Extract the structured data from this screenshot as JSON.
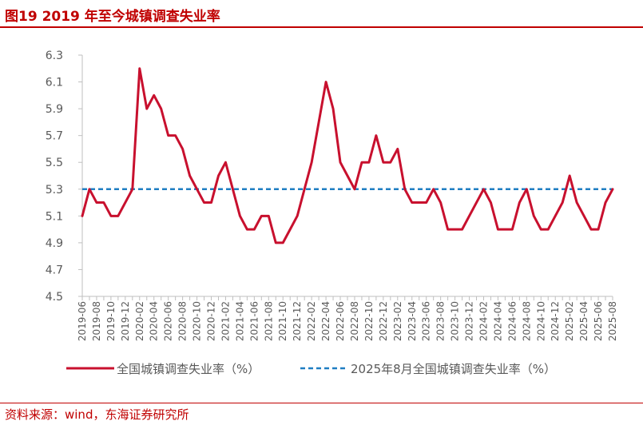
{
  "header": {
    "title": "图19  2019 年至今城镇调查失业率"
  },
  "footer": {
    "source": "资料来源：wind，东海证券研究所"
  },
  "colors": {
    "series_main": "#C8102E",
    "series_ref": "#1F7EC2",
    "axis": "#BFBFBF",
    "text": "#595959",
    "brand": "#C00000"
  },
  "chart_data": {
    "type": "line",
    "ylim": [
      4.5,
      6.3
    ],
    "yticks": [
      "4.5",
      "4.7",
      "4.9",
      "5.1",
      "5.3",
      "5.5",
      "5.7",
      "5.9",
      "6.1",
      "6.3"
    ],
    "x_tick_labels": [
      "2019-06",
      "2019-08",
      "2019-10",
      "2019-12",
      "2020-02",
      "2020-04",
      "2020-06",
      "2020-08",
      "2020-10",
      "2020-12",
      "2021-02",
      "2021-04",
      "2021-06",
      "2021-08",
      "2021-10",
      "2021-12",
      "2022-02",
      "2022-04",
      "2022-06",
      "2022-08",
      "2022-10",
      "2022-12",
      "2023-02",
      "2023-04",
      "2023-06",
      "2023-08",
      "2023-10",
      "2023-12",
      "2024-02",
      "2024-04",
      "2024-06",
      "2024-08",
      "2024-10",
      "2024-12",
      "2025-02",
      "2025-04",
      "2025-06",
      "2025-08"
    ],
    "x": [
      "2019-06",
      "2019-07",
      "2019-08",
      "2019-09",
      "2019-10",
      "2019-11",
      "2019-12",
      "2020-01",
      "2020-02",
      "2020-03",
      "2020-04",
      "2020-05",
      "2020-06",
      "2020-07",
      "2020-08",
      "2020-09",
      "2020-10",
      "2020-11",
      "2020-12",
      "2021-01",
      "2021-02",
      "2021-03",
      "2021-04",
      "2021-05",
      "2021-06",
      "2021-07",
      "2021-08",
      "2021-09",
      "2021-10",
      "2021-11",
      "2021-12",
      "2022-01",
      "2022-02",
      "2022-03",
      "2022-04",
      "2022-05",
      "2022-06",
      "2022-07",
      "2022-08",
      "2022-09",
      "2022-10",
      "2022-11",
      "2022-12",
      "2023-01",
      "2023-02",
      "2023-03",
      "2023-04",
      "2023-05",
      "2023-06",
      "2023-07",
      "2023-08",
      "2023-09",
      "2023-10",
      "2023-11",
      "2023-12",
      "2024-01",
      "2024-02",
      "2024-03",
      "2024-04",
      "2024-05",
      "2024-06",
      "2024-07",
      "2024-08",
      "2024-09",
      "2024-10",
      "2024-11",
      "2024-12",
      "2025-01",
      "2025-02",
      "2025-03",
      "2025-04",
      "2025-05",
      "2025-06",
      "2025-07",
      "2025-08"
    ],
    "series": [
      {
        "name": "全国城镇调查失业率（%）",
        "style": "solid",
        "values": [
          5.1,
          5.3,
          5.2,
          5.2,
          5.1,
          5.1,
          5.2,
          5.3,
          6.2,
          5.9,
          6.0,
          5.9,
          5.7,
          5.7,
          5.6,
          5.4,
          5.3,
          5.2,
          5.2,
          5.4,
          5.5,
          5.3,
          5.1,
          5.0,
          5.0,
          5.1,
          5.1,
          4.9,
          4.9,
          5.0,
          5.1,
          5.3,
          5.5,
          5.8,
          6.1,
          5.9,
          5.5,
          5.4,
          5.3,
          5.5,
          5.5,
          5.7,
          5.5,
          5.5,
          5.6,
          5.3,
          5.2,
          5.2,
          5.2,
          5.3,
          5.2,
          5.0,
          5.0,
          5.0,
          5.1,
          5.2,
          5.3,
          5.2,
          5.0,
          5.0,
          5.0,
          5.2,
          5.3,
          5.1,
          5.0,
          5.0,
          5.1,
          5.2,
          5.4,
          5.2,
          5.1,
          5.0,
          5.0,
          5.2,
          5.3
        ]
      },
      {
        "name": "2025年8月全国城镇调查失业率（%）",
        "style": "dashed",
        "value": 5.3
      }
    ]
  }
}
